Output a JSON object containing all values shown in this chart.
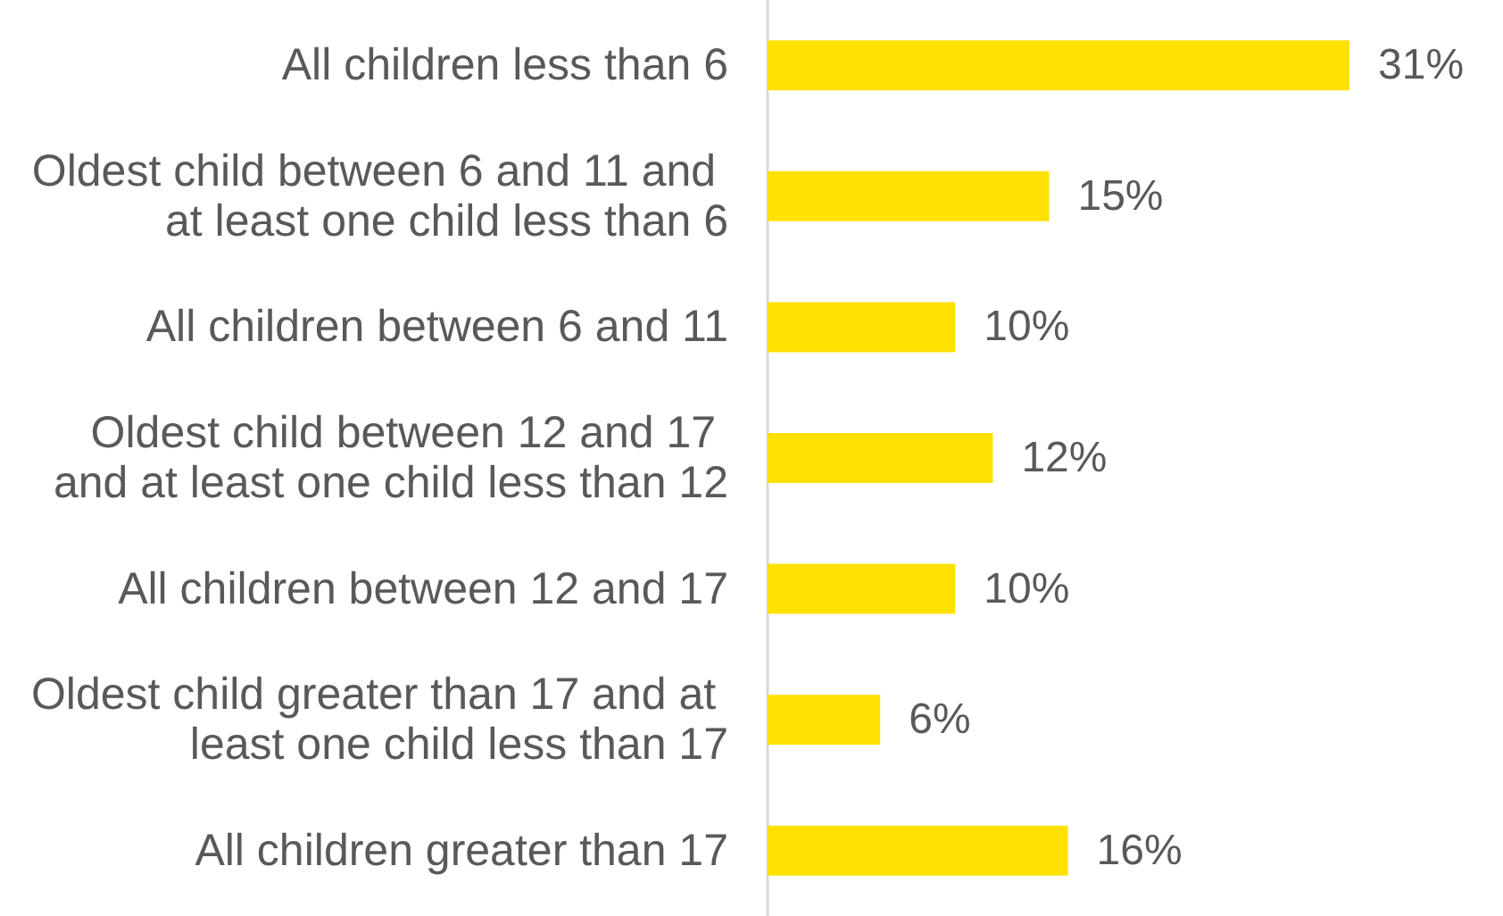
{
  "chart_data": {
    "type": "bar",
    "orientation": "horizontal",
    "categories": [
      "All children less than 6",
      "Oldest child between 6 and 11 and at least one child less than 6",
      "All children between 6 and 11",
      "Oldest child between 12 and 17 and at least one child less than 12",
      "All children between 12 and 17",
      "Oldest child greater than 17 and at least one child less than 17",
      "All children greater than 17"
    ],
    "values": [
      31,
      15,
      10,
      12,
      10,
      6,
      16
    ],
    "value_labels": [
      "31%",
      "15%",
      "10%",
      "12%",
      "10%",
      "6%",
      "16%"
    ],
    "color": "#ffe100",
    "tick_labels": "y",
    "grid": false
  }
}
